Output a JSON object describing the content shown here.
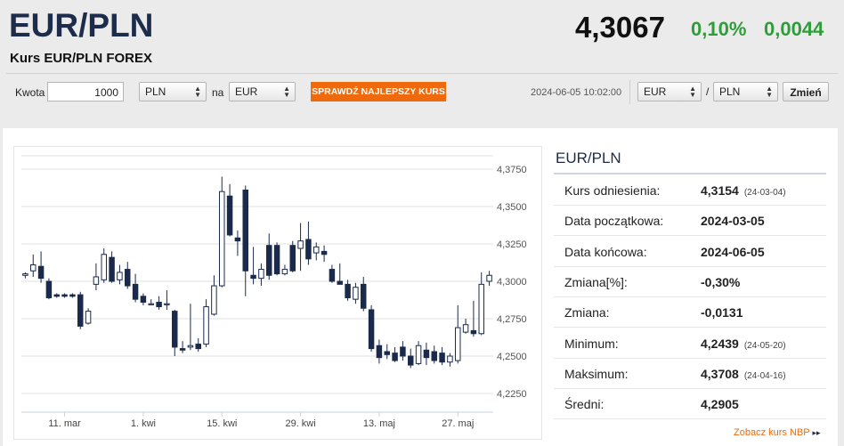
{
  "header": {
    "pair": "EUR/PLN",
    "subtitle": "Kurs EUR/PLN FOREX",
    "rate": "4,3067",
    "change_pct": "0,10%",
    "change_abs": "0,0044",
    "change_color": "#2e9d3a"
  },
  "converter": {
    "amount_label": "Kwota",
    "amount_value": "1000",
    "from_currency": "PLN",
    "to_label": "na",
    "to_currency": "EUR",
    "best_rate_button": "SPRAWDŹ NAJLEPSZY KURS",
    "button_color": "#ef6a0c",
    "timestamp": "2024-06-05 10:02:00"
  },
  "pair_switch": {
    "base": "EUR",
    "slash": "/",
    "quote": "PLN",
    "change_button": "Zmień"
  },
  "chart_data": {
    "type": "candlestick",
    "title": "",
    "xlabel": "",
    "ylabel": "",
    "ylim": [
      4.2125,
      4.3875
    ],
    "y_ticks": [
      "4,2250",
      "4,2500",
      "4,2750",
      "4,3000",
      "4,3250",
      "4,3500",
      "4,3750"
    ],
    "y_tick_values": [
      4.225,
      4.25,
      4.275,
      4.3,
      4.325,
      4.35,
      4.375
    ],
    "x_tick_labels": [
      "11. mar",
      "1. kwi",
      "15. kwi",
      "29. kwi",
      "13. maj",
      "27. maj"
    ],
    "x_tick_indices": [
      5,
      15,
      25,
      35,
      45,
      55
    ],
    "grid": true,
    "up_color": "#ffffff",
    "down_color": "#1b2a4a",
    "candles": [
      {
        "o": 4.304,
        "h": 4.306,
        "l": 4.302,
        "c": 4.305
      },
      {
        "o": 4.307,
        "h": 4.318,
        "l": 4.303,
        "c": 4.311
      },
      {
        "o": 4.31,
        "h": 4.32,
        "l": 4.299,
        "c": 4.302
      },
      {
        "o": 4.3,
        "h": 4.302,
        "l": 4.288,
        "c": 4.289
      },
      {
        "o": 4.291,
        "h": 4.292,
        "l": 4.289,
        "c": 4.29
      },
      {
        "o": 4.291,
        "h": 4.292,
        "l": 4.289,
        "c": 4.29
      },
      {
        "o": 4.291,
        "h": 4.292,
        "l": 4.289,
        "c": 4.29
      },
      {
        "o": 4.291,
        "h": 4.293,
        "l": 4.268,
        "c": 4.27
      },
      {
        "o": 4.272,
        "h": 4.282,
        "l": 4.271,
        "c": 4.28
      },
      {
        "o": 4.298,
        "h": 4.312,
        "l": 4.294,
        "c": 4.303
      },
      {
        "o": 4.301,
        "h": 4.322,
        "l": 4.299,
        "c": 4.318
      },
      {
        "o": 4.316,
        "h": 4.32,
        "l": 4.299,
        "c": 4.3
      },
      {
        "o": 4.301,
        "h": 4.311,
        "l": 4.298,
        "c": 4.306
      },
      {
        "o": 4.308,
        "h": 4.313,
        "l": 4.295,
        "c": 4.297
      },
      {
        "o": 4.298,
        "h": 4.305,
        "l": 4.286,
        "c": 4.288
      },
      {
        "o": 4.29,
        "h": 4.292,
        "l": 4.284,
        "c": 4.286
      },
      {
        "o": 4.285,
        "h": 4.288,
        "l": 4.284,
        "c": 4.285
      },
      {
        "o": 4.286,
        "h": 4.29,
        "l": 4.281,
        "c": 4.283
      },
      {
        "o": 4.285,
        "h": 4.294,
        "l": 4.281,
        "c": 4.285
      },
      {
        "o": 4.28,
        "h": 4.281,
        "l": 4.25,
        "c": 4.256
      },
      {
        "o": 4.255,
        "h": 4.26,
        "l": 4.252,
        "c": 4.254
      },
      {
        "o": 4.256,
        "h": 4.285,
        "l": 4.254,
        "c": 4.257
      },
      {
        "o": 4.258,
        "h": 4.262,
        "l": 4.253,
        "c": 4.255
      },
      {
        "o": 4.258,
        "h": 4.288,
        "l": 4.256,
        "c": 4.283
      },
      {
        "o": 4.278,
        "h": 4.304,
        "l": 4.277,
        "c": 4.297
      },
      {
        "o": 4.297,
        "h": 4.37,
        "l": 4.296,
        "c": 4.36
      },
      {
        "o": 4.357,
        "h": 4.365,
        "l": 4.33,
        "c": 4.331
      },
      {
        "o": 4.329,
        "h": 4.334,
        "l": 4.317,
        "c": 4.327
      },
      {
        "o": 4.361,
        "h": 4.364,
        "l": 4.29,
        "c": 4.307
      },
      {
        "o": 4.304,
        "h": 4.323,
        "l": 4.298,
        "c": 4.302
      },
      {
        "o": 4.302,
        "h": 4.312,
        "l": 4.297,
        "c": 4.308
      },
      {
        "o": 4.324,
        "h": 4.332,
        "l": 4.301,
        "c": 4.304
      },
      {
        "o": 4.324,
        "h": 4.326,
        "l": 4.304,
        "c": 4.305
      },
      {
        "o": 4.305,
        "h": 4.311,
        "l": 4.304,
        "c": 4.308
      },
      {
        "o": 4.324,
        "h": 4.327,
        "l": 4.306,
        "c": 4.307
      },
      {
        "o": 4.322,
        "h": 4.339,
        "l": 4.307,
        "c": 4.327
      },
      {
        "o": 4.328,
        "h": 4.34,
        "l": 4.311,
        "c": 4.315
      },
      {
        "o": 4.319,
        "h": 4.326,
        "l": 4.314,
        "c": 4.323
      },
      {
        "o": 4.32,
        "h": 4.324,
        "l": 4.313,
        "c": 4.318
      },
      {
        "o": 4.308,
        "h": 4.311,
        "l": 4.299,
        "c": 4.3
      },
      {
        "o": 4.3,
        "h": 4.312,
        "l": 4.299,
        "c": 4.298
      },
      {
        "o": 4.298,
        "h": 4.301,
        "l": 4.287,
        "c": 4.289
      },
      {
        "o": 4.288,
        "h": 4.299,
        "l": 4.285,
        "c": 4.296
      },
      {
        "o": 4.298,
        "h": 4.303,
        "l": 4.28,
        "c": 4.282
      },
      {
        "o": 4.281,
        "h": 4.284,
        "l": 4.253,
        "c": 4.255
      },
      {
        "o": 4.257,
        "h": 4.261,
        "l": 4.245,
        "c": 4.249
      },
      {
        "o": 4.253,
        "h": 4.258,
        "l": 4.248,
        "c": 4.251
      },
      {
        "o": 4.252,
        "h": 4.256,
        "l": 4.246,
        "c": 4.247
      },
      {
        "o": 4.256,
        "h": 4.26,
        "l": 4.247,
        "c": 4.25
      },
      {
        "o": 4.25,
        "h": 4.255,
        "l": 4.242,
        "c": 4.244
      },
      {
        "o": 4.245,
        "h": 4.26,
        "l": 4.244,
        "c": 4.257
      },
      {
        "o": 4.254,
        "h": 4.259,
        "l": 4.244,
        "c": 4.249
      },
      {
        "o": 4.253,
        "h": 4.257,
        "l": 4.245,
        "c": 4.247
      },
      {
        "o": 4.252,
        "h": 4.256,
        "l": 4.244,
        "c": 4.246
      },
      {
        "o": 4.246,
        "h": 4.252,
        "l": 4.243,
        "c": 4.25
      },
      {
        "o": 4.247,
        "h": 4.284,
        "l": 4.245,
        "c": 4.269
      },
      {
        "o": 4.266,
        "h": 4.275,
        "l": 4.265,
        "c": 4.271
      },
      {
        "o": 4.267,
        "h": 4.287,
        "l": 4.263,
        "c": 4.265
      },
      {
        "o": 4.265,
        "h": 4.306,
        "l": 4.264,
        "c": 4.298
      },
      {
        "o": 4.3,
        "h": 4.307,
        "l": 4.297,
        "c": 4.304
      }
    ]
  },
  "stats": {
    "title": "EUR/PLN",
    "rows": [
      {
        "label": "Kurs odniesienia:",
        "value": "4,3154",
        "date": "(24-03-04)"
      },
      {
        "label": "Data początkowa:",
        "value": "2024-03-05",
        "date": ""
      },
      {
        "label": "Data końcowa:",
        "value": "2024-06-05",
        "date": ""
      },
      {
        "label": "Zmiana[%]:",
        "value": "-0,30%",
        "date": ""
      },
      {
        "label": "Zmiana:",
        "value": "-0,0131",
        "date": ""
      },
      {
        "label": "Minimum:",
        "value": "4,2439",
        "date": "(24-05-20)"
      },
      {
        "label": "Maksimum:",
        "value": "4,3708",
        "date": "(24-04-16)"
      },
      {
        "label": "Średni:",
        "value": "4,2905",
        "date": ""
      }
    ],
    "nbp_link": "Zobacz kurs NBP",
    "nbp_arrow": "▸▸"
  }
}
